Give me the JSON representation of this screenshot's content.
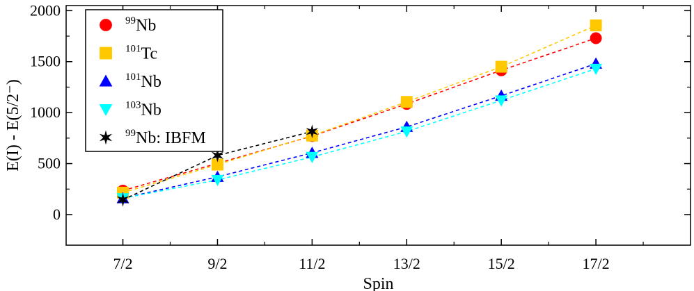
{
  "chart_data": {
    "type": "line",
    "title": "",
    "xlabel": "Spin",
    "ylabel": "E(I) - E(5/2⁻)",
    "categories": [
      "7/2",
      "9/2",
      "11/2",
      "13/2",
      "15/2",
      "17/2"
    ],
    "x": [
      3.5,
      4.5,
      5.5,
      6.5,
      7.5,
      8.5
    ],
    "xlim": [
      2.9,
      9.5
    ],
    "ylim": [
      -300,
      2050
    ],
    "yticks": [
      0,
      500,
      1000,
      1500,
      2000
    ],
    "grid": false,
    "legend_position": "top-left",
    "series": [
      {
        "name": "99Nb",
        "mass": "99",
        "element": "Nb",
        "suffix": "",
        "marker": "circle",
        "color": "#ff0000",
        "values": [
          235,
          null,
          770,
          1085,
          1415,
          1730
        ]
      },
      {
        "name": "101Tc",
        "mass": "101",
        "element": "Tc",
        "suffix": "",
        "marker": "square",
        "color": "#ffc800",
        "values": [
          215,
          490,
          775,
          1105,
          1450,
          1855
        ]
      },
      {
        "name": "101Nb",
        "mass": "101",
        "element": "Nb",
        "suffix": "",
        "marker": "triangle-up",
        "color": "#0000ff",
        "values": [
          160,
          370,
          605,
          860,
          1165,
          1480
        ]
      },
      {
        "name": "103Nb",
        "mass": "103",
        "element": "Nb",
        "suffix": "",
        "marker": "triangle-down",
        "color": "#00ffff",
        "values": [
          160,
          340,
          565,
          815,
          1120,
          1430
        ]
      },
      {
        "name": "99Nb: IBFM",
        "mass": "99",
        "element": "Nb",
        "suffix": ": IBFM",
        "marker": "star",
        "color": "#000000",
        "values": [
          145,
          580,
          815,
          null,
          null,
          null
        ]
      }
    ]
  }
}
